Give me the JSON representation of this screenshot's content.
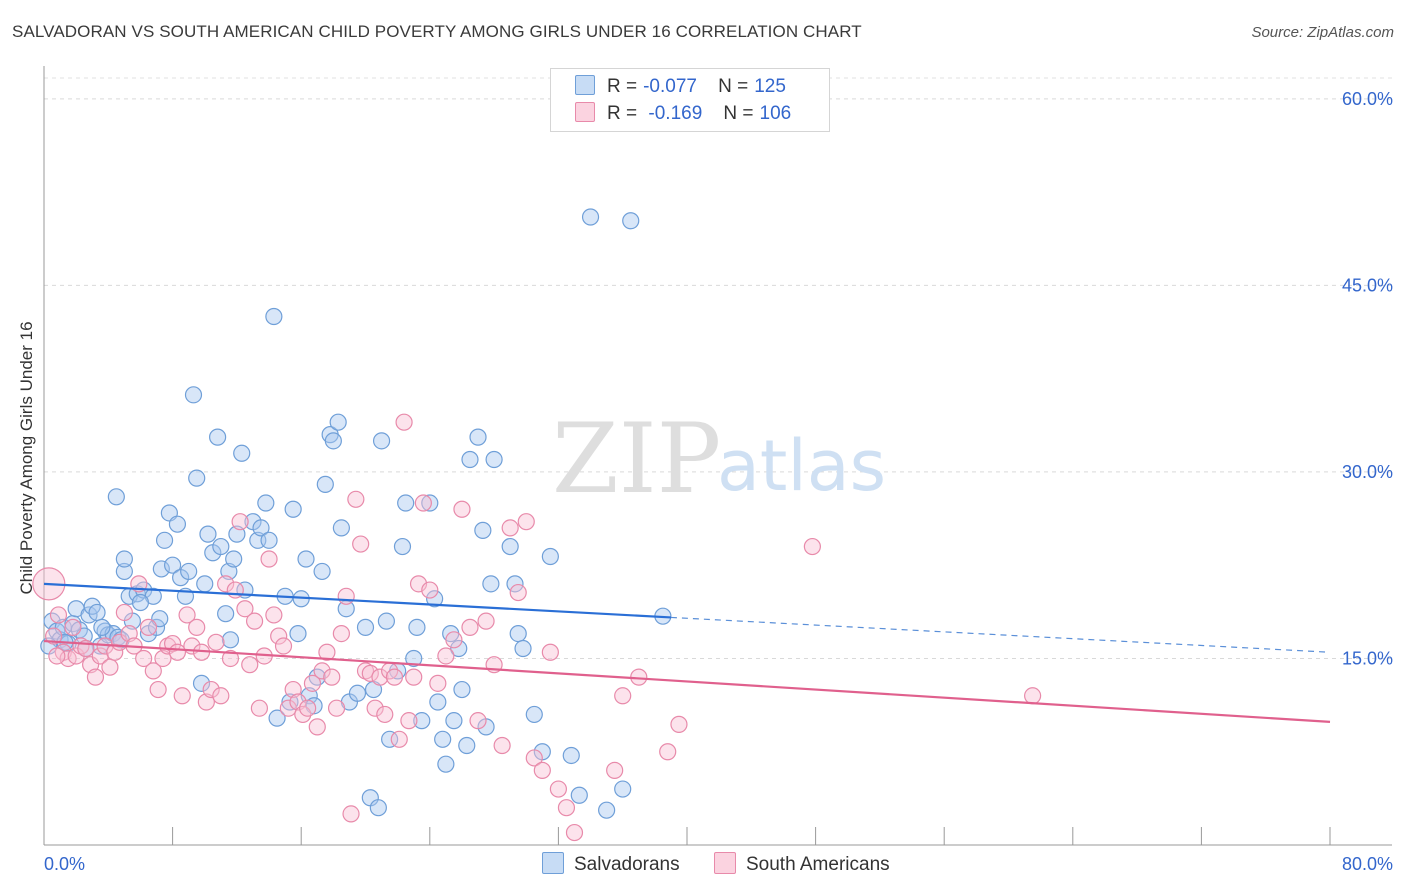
{
  "title": "SALVADORAN VS SOUTH AMERICAN CHILD POVERTY AMONG GIRLS UNDER 16 CORRELATION CHART",
  "source": "Source: ZipAtlas.com",
  "watermark": {
    "zip": "ZIP",
    "atlas": "atlas"
  },
  "legend": {
    "r_label": "R =",
    "n_label": "N =",
    "rows": [
      {
        "r": "-0.077",
        "n": "125",
        "color": "#a8c8f0",
        "border": "#6f9fd8"
      },
      {
        "r": "-0.169",
        "n": "106",
        "color": "#f8c0d4",
        "border": "#e88aaa"
      }
    ]
  },
  "series_labels": [
    "Salvadorans",
    "South Americans"
  ],
  "chart_data": {
    "type": "scatter",
    "xlabel": "",
    "ylabel": "Child Poverty Among Girls Under 16",
    "xlim": [
      0,
      80
    ],
    "ylim": [
      0,
      62
    ],
    "x_tick_labels": [
      "0.0%",
      "80.0%"
    ],
    "y_ticks": [
      15,
      30,
      45,
      60
    ],
    "y_tick_labels": [
      "15.0%",
      "30.0%",
      "45.0%",
      "60.0%"
    ],
    "grid": true,
    "series": [
      {
        "name": "Salvadorans",
        "color": "#6f9fd8",
        "fill": "#a8c8f0",
        "trend": {
          "x0": 0,
          "y0": 21.0,
          "x1": 39,
          "y1": 18.3,
          "dash_x1": 80,
          "dash_y1": 15.5
        },
        "points": [
          [
            0.5,
            18.0
          ],
          [
            0.8,
            17.2
          ],
          [
            1.0,
            16.5
          ],
          [
            1.2,
            17.5
          ],
          [
            1.5,
            16.2
          ],
          [
            1.8,
            17.8
          ],
          [
            2.0,
            19.0
          ],
          [
            2.2,
            17.3
          ],
          [
            2.5,
            16.8
          ],
          [
            2.8,
            18.5
          ],
          [
            3.0,
            19.2
          ],
          [
            3.3,
            18.7
          ],
          [
            3.5,
            16.0
          ],
          [
            3.8,
            17.2
          ],
          [
            4.0,
            16.9
          ],
          [
            4.3,
            17.0
          ],
          [
            4.6,
            16.7
          ],
          [
            5.0,
            22.0
          ],
          [
            5.3,
            20.0
          ],
          [
            4.5,
            28.0
          ],
          [
            5.0,
            23.0
          ],
          [
            5.5,
            18.0
          ],
          [
            5.8,
            20.2
          ],
          [
            6.2,
            20.5
          ],
          [
            6.5,
            17.0
          ],
          [
            6.8,
            20.0
          ],
          [
            7.0,
            17.5
          ],
          [
            7.3,
            22.2
          ],
          [
            7.5,
            24.5
          ],
          [
            7.8,
            26.7
          ],
          [
            8.0,
            22.5
          ],
          [
            8.3,
            25.8
          ],
          [
            8.5,
            21.5
          ],
          [
            8.8,
            20.0
          ],
          [
            9.0,
            22.0
          ],
          [
            9.3,
            36.2
          ],
          [
            9.5,
            29.5
          ],
          [
            10.0,
            21.0
          ],
          [
            10.2,
            25.0
          ],
          [
            10.5,
            23.5
          ],
          [
            10.8,
            32.8
          ],
          [
            11.0,
            24.0
          ],
          [
            11.3,
            18.6
          ],
          [
            11.5,
            22.0
          ],
          [
            11.8,
            23.0
          ],
          [
            12.0,
            25.0
          ],
          [
            12.3,
            31.5
          ],
          [
            12.5,
            20.5
          ],
          [
            13.0,
            26.0
          ],
          [
            13.3,
            24.5
          ],
          [
            13.5,
            25.5
          ],
          [
            13.8,
            27.5
          ],
          [
            14.0,
            24.5
          ],
          [
            14.3,
            42.5
          ],
          [
            14.5,
            10.2
          ],
          [
            15.0,
            20.0
          ],
          [
            15.3,
            11.5
          ],
          [
            15.5,
            27.0
          ],
          [
            15.8,
            17.0
          ],
          [
            16.0,
            19.8
          ],
          [
            16.3,
            23.0
          ],
          [
            16.5,
            12.0
          ],
          [
            16.8,
            11.2
          ],
          [
            17.0,
            13.5
          ],
          [
            17.3,
            22.0
          ],
          [
            17.5,
            29.0
          ],
          [
            17.8,
            33.0
          ],
          [
            18.0,
            32.5
          ],
          [
            18.3,
            34.0
          ],
          [
            18.5,
            25.5
          ],
          [
            18.8,
            19.0
          ],
          [
            19.0,
            11.5
          ],
          [
            19.5,
            12.2
          ],
          [
            20.0,
            17.5
          ],
          [
            20.3,
            3.8
          ],
          [
            20.5,
            12.5
          ],
          [
            20.8,
            3.0
          ],
          [
            21.0,
            32.5
          ],
          [
            21.3,
            18.0
          ],
          [
            21.5,
            8.5
          ],
          [
            22.0,
            14.0
          ],
          [
            22.3,
            24.0
          ],
          [
            22.5,
            27.5
          ],
          [
            23.0,
            15.0
          ],
          [
            23.2,
            17.5
          ],
          [
            23.5,
            10.0
          ],
          [
            24.0,
            27.5
          ],
          [
            24.3,
            19.8
          ],
          [
            24.5,
            11.5
          ],
          [
            24.8,
            8.5
          ],
          [
            25.0,
            6.5
          ],
          [
            25.3,
            17.0
          ],
          [
            25.5,
            10.0
          ],
          [
            25.8,
            15.8
          ],
          [
            26.0,
            12.5
          ],
          [
            26.3,
            8.0
          ],
          [
            26.5,
            31.0
          ],
          [
            27.0,
            32.8
          ],
          [
            27.3,
            25.3
          ],
          [
            27.5,
            9.5
          ],
          [
            27.8,
            21.0
          ],
          [
            28.0,
            31.0
          ],
          [
            29.0,
            24.0
          ],
          [
            29.3,
            21.0
          ],
          [
            29.5,
            17.0
          ],
          [
            29.8,
            15.8
          ],
          [
            30.5,
            10.5
          ],
          [
            31.0,
            7.5
          ],
          [
            31.5,
            23.2
          ],
          [
            32.8,
            7.2
          ],
          [
            33.3,
            4.0
          ],
          [
            34.0,
            50.5
          ],
          [
            35.0,
            2.8
          ],
          [
            36.0,
            4.5
          ],
          [
            36.5,
            50.2
          ],
          [
            38.5,
            18.4
          ],
          [
            0.3,
            16.0
          ],
          [
            1.3,
            16.3
          ],
          [
            2.6,
            15.8
          ],
          [
            3.6,
            17.5
          ],
          [
            4.8,
            16.5
          ],
          [
            6.0,
            19.5
          ],
          [
            7.2,
            18.2
          ],
          [
            9.8,
            13.0
          ],
          [
            11.6,
            16.5
          ]
        ]
      },
      {
        "name": "South Americans",
        "color": "#e88aaa",
        "fill": "#f8c0d4",
        "trend": {
          "x0": 0,
          "y0": 16.4,
          "x1": 80,
          "y1": 9.9
        },
        "points": [
          [
            0.3,
            21.0
          ],
          [
            0.6,
            16.8
          ],
          [
            0.9,
            18.5
          ],
          [
            1.2,
            15.5
          ],
          [
            1.5,
            15.0
          ],
          [
            1.8,
            17.5
          ],
          [
            2.0,
            15.2
          ],
          [
            2.3,
            16.0
          ],
          [
            2.6,
            15.8
          ],
          [
            2.9,
            14.5
          ],
          [
            3.2,
            13.5
          ],
          [
            3.5,
            15.2
          ],
          [
            3.8,
            16.0
          ],
          [
            4.1,
            14.3
          ],
          [
            4.4,
            15.5
          ],
          [
            4.7,
            16.3
          ],
          [
            5.0,
            18.7
          ],
          [
            5.3,
            17.0
          ],
          [
            5.6,
            16.0
          ],
          [
            5.9,
            21.0
          ],
          [
            6.2,
            15.0
          ],
          [
            6.5,
            17.5
          ],
          [
            6.8,
            14.0
          ],
          [
            7.1,
            12.5
          ],
          [
            7.4,
            15.0
          ],
          [
            7.7,
            16.0
          ],
          [
            8.0,
            16.2
          ],
          [
            8.3,
            15.5
          ],
          [
            8.6,
            12.0
          ],
          [
            8.9,
            18.5
          ],
          [
            9.2,
            16.0
          ],
          [
            9.5,
            17.5
          ],
          [
            9.8,
            15.5
          ],
          [
            10.1,
            11.5
          ],
          [
            10.4,
            12.5
          ],
          [
            10.7,
            16.3
          ],
          [
            11.0,
            12.0
          ],
          [
            11.3,
            21.0
          ],
          [
            11.6,
            15.0
          ],
          [
            11.9,
            20.5
          ],
          [
            12.2,
            26.0
          ],
          [
            12.5,
            19.0
          ],
          [
            12.8,
            14.5
          ],
          [
            13.1,
            18.0
          ],
          [
            13.4,
            11.0
          ],
          [
            13.7,
            15.2
          ],
          [
            14.0,
            23.0
          ],
          [
            14.3,
            18.5
          ],
          [
            14.6,
            16.8
          ],
          [
            14.9,
            16.0
          ],
          [
            15.2,
            11.0
          ],
          [
            15.5,
            12.5
          ],
          [
            15.8,
            11.5
          ],
          [
            16.1,
            10.5
          ],
          [
            16.4,
            11.0
          ],
          [
            16.7,
            13.0
          ],
          [
            17.0,
            9.5
          ],
          [
            17.3,
            14.0
          ],
          [
            17.6,
            15.5
          ],
          [
            17.9,
            13.5
          ],
          [
            18.2,
            11.0
          ],
          [
            18.5,
            17.0
          ],
          [
            18.8,
            20.0
          ],
          [
            19.1,
            2.5
          ],
          [
            19.4,
            27.8
          ],
          [
            19.7,
            24.2
          ],
          [
            20.0,
            14.0
          ],
          [
            20.3,
            13.8
          ],
          [
            20.6,
            11.0
          ],
          [
            20.9,
            13.5
          ],
          [
            21.2,
            10.5
          ],
          [
            21.5,
            14.0
          ],
          [
            21.8,
            13.5
          ],
          [
            22.1,
            8.5
          ],
          [
            22.4,
            34.0
          ],
          [
            22.7,
            10.0
          ],
          [
            23.0,
            13.5
          ],
          [
            23.3,
            21.0
          ],
          [
            23.6,
            27.5
          ],
          [
            24.0,
            20.5
          ],
          [
            24.5,
            13.0
          ],
          [
            25.0,
            15.2
          ],
          [
            25.5,
            16.5
          ],
          [
            26.0,
            27.0
          ],
          [
            26.5,
            17.5
          ],
          [
            27.0,
            10.0
          ],
          [
            27.5,
            18.0
          ],
          [
            28.0,
            14.5
          ],
          [
            28.5,
            8.0
          ],
          [
            29.0,
            25.5
          ],
          [
            29.5,
            20.3
          ],
          [
            30.0,
            26.0
          ],
          [
            30.5,
            7.0
          ],
          [
            31.0,
            6.0
          ],
          [
            31.5,
            15.5
          ],
          [
            32.0,
            4.5
          ],
          [
            32.5,
            3.0
          ],
          [
            33.0,
            1.0
          ],
          [
            35.5,
            6.0
          ],
          [
            36.0,
            12.0
          ],
          [
            37.0,
            13.5
          ],
          [
            38.8,
            7.5
          ],
          [
            39.5,
            9.7
          ],
          [
            47.8,
            24.0
          ],
          [
            61.5,
            12.0
          ],
          [
            0.8,
            15.2
          ]
        ]
      }
    ]
  }
}
